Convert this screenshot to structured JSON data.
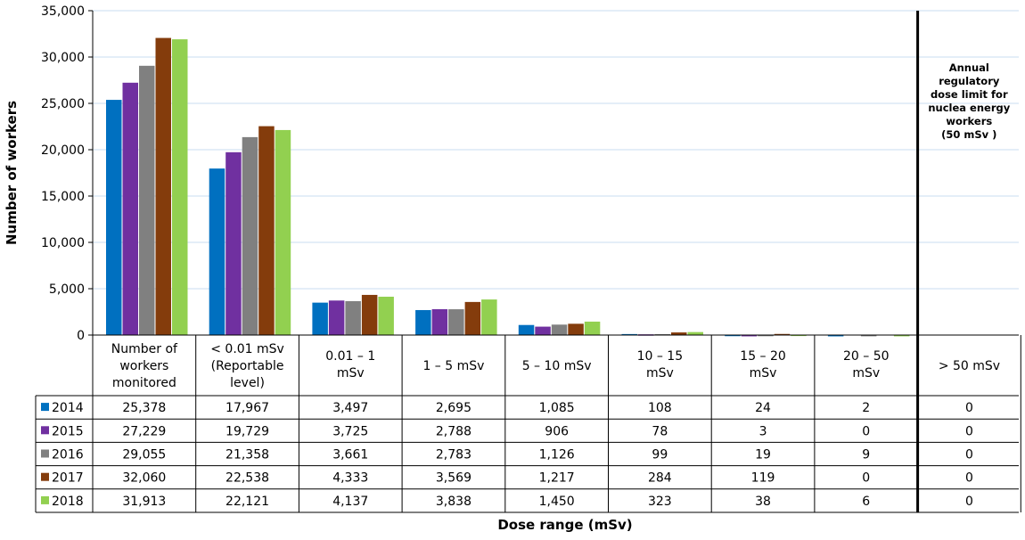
{
  "chart_data": {
    "type": "bar",
    "title": "",
    "xlabel": "Dose range (mSv)",
    "ylabel": "Number of workers",
    "ylim": [
      0,
      35000
    ],
    "yticks": [
      "0",
      "5,000",
      "10,000",
      "15,000",
      "20,000",
      "25,000",
      "30,000",
      "35,000"
    ],
    "grid": true,
    "legend": "data-table",
    "categories": [
      [
        "Number of",
        "workers",
        "monitored"
      ],
      [
        "< 0.01 mSv",
        "(Reportable",
        "level)"
      ],
      [
        "0.01 – 1",
        "mSv"
      ],
      [
        "1 – 5 mSv"
      ],
      [
        "5 – 10 mSv"
      ],
      [
        "10 – 15",
        "mSv"
      ],
      [
        "15 – 20",
        "mSv"
      ],
      [
        "20 – 50",
        "mSv"
      ],
      [
        "> 50 mSv"
      ]
    ],
    "series": [
      {
        "name": "2014",
        "color": "#0070C0",
        "values": [
          25378,
          17967,
          3497,
          2695,
          1085,
          108,
          24,
          2,
          0
        ],
        "labels": [
          "25,378",
          "17,967",
          "3,497",
          "2,695",
          "1,085",
          "108",
          "24",
          "2",
          "0"
        ]
      },
      {
        "name": "2015",
        "color": "#7030A0",
        "values": [
          27229,
          19729,
          3725,
          2788,
          906,
          78,
          3,
          0,
          0
        ],
        "labels": [
          "27,229",
          "19,729",
          "3,725",
          "2,788",
          "906",
          "78",
          "3",
          "0",
          "0"
        ]
      },
      {
        "name": "2016",
        "color": "#808080",
        "values": [
          29055,
          21358,
          3661,
          2783,
          1126,
          99,
          19,
          9,
          0
        ],
        "labels": [
          "29,055",
          "21,358",
          "3,661",
          "2,783",
          "1,126",
          "99",
          "19",
          "9",
          "0"
        ]
      },
      {
        "name": "2017",
        "color": "#843C0C",
        "values": [
          32060,
          22538,
          4333,
          3569,
          1217,
          284,
          119,
          0,
          0
        ],
        "labels": [
          "32,060",
          "22,538",
          "4,333",
          "3,569",
          "1,217",
          "284",
          "119",
          "0",
          "0"
        ]
      },
      {
        "name": "2018",
        "color": "#92D050",
        "values": [
          31913,
          22121,
          4137,
          3838,
          1450,
          323,
          38,
          6,
          0
        ],
        "labels": [
          "31,913",
          "22,121",
          "4,137",
          "3,838",
          "1,450",
          "323",
          "38",
          "6",
          "0"
        ]
      }
    ],
    "annotation": {
      "lines": [
        "Annual",
        "regulatory",
        "dose limit for",
        "nuclea energy",
        "workers",
        "(50 mSv )"
      ],
      "line_after_category": 7
    }
  }
}
